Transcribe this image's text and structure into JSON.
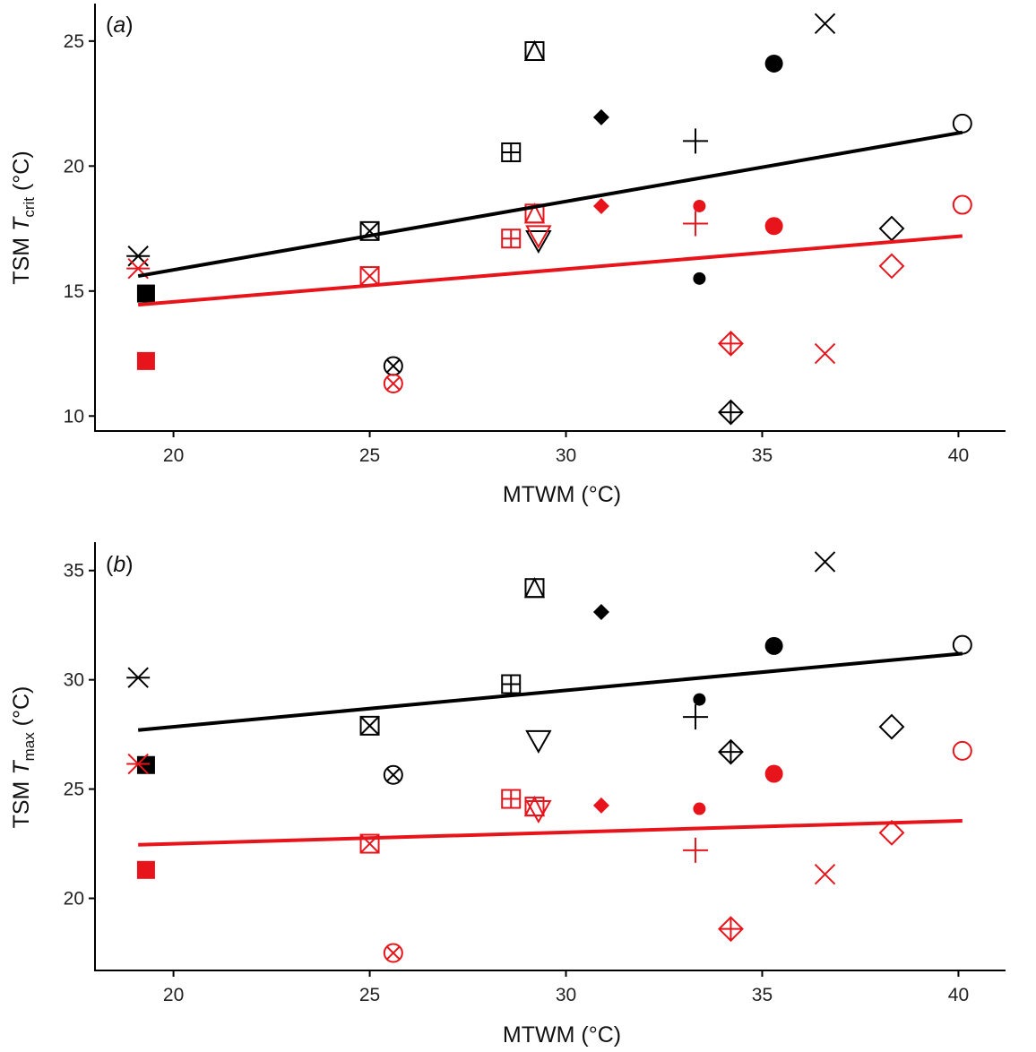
{
  "colors": {
    "black_series": "#000000",
    "red_series": "#e8141b",
    "axis": "#000000"
  },
  "chart_data": [
    {
      "type": "scatter",
      "panel": "(a)",
      "panel_letter": "a",
      "ylabel_prefix": "TSM ",
      "ylabel_var": "T",
      "ylabel_sub": "crit",
      "ylabel_suffix": " (°C)",
      "xlabel": "MTWM (°C)",
      "xlim": [
        18,
        41.2
      ],
      "ylim": [
        9.4,
        26.5
      ],
      "xticks": [
        20,
        25,
        30,
        35,
        40
      ],
      "yticks": [
        10,
        15,
        20,
        25
      ],
      "grid": false,
      "series": [
        {
          "color": "black",
          "trend": {
            "x": [
              19.1,
              40.1
            ],
            "y": [
              15.6,
              21.35
            ]
          },
          "points": [
            {
              "x": 19.1,
              "y": 16.4,
              "marker": "asterisk"
            },
            {
              "x": 19.3,
              "y": 14.9,
              "marker": "square-filled"
            },
            {
              "x": 25.0,
              "y": 17.4,
              "marker": "square-x"
            },
            {
              "x": 25.6,
              "y": 12.0,
              "marker": "circle-x"
            },
            {
              "x": 28.6,
              "y": 20.55,
              "marker": "square-plus"
            },
            {
              "x": 29.2,
              "y": 24.6,
              "marker": "square-triangle"
            },
            {
              "x": 29.3,
              "y": 17.0,
              "marker": "triangle-down"
            },
            {
              "x": 30.9,
              "y": 21.95,
              "marker": "diamond-filled"
            },
            {
              "x": 33.3,
              "y": 21.0,
              "marker": "plus"
            },
            {
              "x": 33.4,
              "y": 15.5,
              "marker": "circle-small-filled"
            },
            {
              "x": 34.2,
              "y": 10.15,
              "marker": "diamond-plus"
            },
            {
              "x": 35.3,
              "y": 24.1,
              "marker": "circle-filled"
            },
            {
              "x": 36.6,
              "y": 25.7,
              "marker": "x"
            },
            {
              "x": 38.3,
              "y": 17.5,
              "marker": "diamond"
            },
            {
              "x": 40.1,
              "y": 21.7,
              "marker": "circle"
            }
          ]
        },
        {
          "color": "red",
          "trend": {
            "x": [
              19.1,
              40.1
            ],
            "y": [
              14.45,
              17.2
            ]
          },
          "points": [
            {
              "x": 19.1,
              "y": 15.9,
              "marker": "asterisk"
            },
            {
              "x": 19.3,
              "y": 12.2,
              "marker": "square-filled"
            },
            {
              "x": 25.0,
              "y": 15.6,
              "marker": "square-x"
            },
            {
              "x": 25.6,
              "y": 11.3,
              "marker": "circle-x"
            },
            {
              "x": 28.6,
              "y": 17.1,
              "marker": "square-plus"
            },
            {
              "x": 29.2,
              "y": 18.1,
              "marker": "square-triangle"
            },
            {
              "x": 29.3,
              "y": 17.2,
              "marker": "triangle-down"
            },
            {
              "x": 30.9,
              "y": 18.4,
              "marker": "diamond-filled"
            },
            {
              "x": 33.3,
              "y": 17.7,
              "marker": "plus"
            },
            {
              "x": 33.4,
              "y": 18.4,
              "marker": "circle-small-filled"
            },
            {
              "x": 34.2,
              "y": 12.9,
              "marker": "diamond-plus"
            },
            {
              "x": 35.3,
              "y": 17.6,
              "marker": "circle-filled"
            },
            {
              "x": 36.6,
              "y": 12.5,
              "marker": "x"
            },
            {
              "x": 38.3,
              "y": 16.0,
              "marker": "diamond"
            },
            {
              "x": 40.1,
              "y": 18.45,
              "marker": "circle"
            }
          ]
        }
      ]
    },
    {
      "type": "scatter",
      "panel": "(b)",
      "panel_letter": "b",
      "ylabel_prefix": "TSM ",
      "ylabel_var": "T",
      "ylabel_sub": "max",
      "ylabel_suffix": " (°C)",
      "xlabel": "MTWM (°C)",
      "xlim": [
        18,
        41.2
      ],
      "ylim": [
        16.7,
        36.3
      ],
      "xticks": [
        20,
        25,
        30,
        35,
        40
      ],
      "yticks": [
        20,
        25,
        30,
        35
      ],
      "grid": false,
      "series": [
        {
          "color": "black",
          "trend": {
            "x": [
              19.1,
              40.1
            ],
            "y": [
              27.7,
              31.2
            ]
          },
          "points": [
            {
              "x": 19.1,
              "y": 30.1,
              "marker": "asterisk"
            },
            {
              "x": 19.3,
              "y": 26.1,
              "marker": "square-filled"
            },
            {
              "x": 25.0,
              "y": 27.9,
              "marker": "square-x"
            },
            {
              "x": 25.6,
              "y": 25.65,
              "marker": "circle-x"
            },
            {
              "x": 28.6,
              "y": 29.8,
              "marker": "square-plus"
            },
            {
              "x": 29.2,
              "y": 34.2,
              "marker": "square-triangle"
            },
            {
              "x": 29.3,
              "y": 27.2,
              "marker": "triangle-down"
            },
            {
              "x": 30.9,
              "y": 33.1,
              "marker": "diamond-filled"
            },
            {
              "x": 33.3,
              "y": 28.3,
              "marker": "plus"
            },
            {
              "x": 33.4,
              "y": 29.1,
              "marker": "circle-small-filled"
            },
            {
              "x": 34.2,
              "y": 26.7,
              "marker": "diamond-plus"
            },
            {
              "x": 35.3,
              "y": 31.55,
              "marker": "circle-filled"
            },
            {
              "x": 36.6,
              "y": 35.4,
              "marker": "x"
            },
            {
              "x": 38.3,
              "y": 27.85,
              "marker": "diamond"
            },
            {
              "x": 40.1,
              "y": 31.6,
              "marker": "circle"
            }
          ]
        },
        {
          "color": "red",
          "trend": {
            "x": [
              19.1,
              40.1
            ],
            "y": [
              22.45,
              23.55
            ]
          },
          "points": [
            {
              "x": 19.1,
              "y": 26.15,
              "marker": "asterisk"
            },
            {
              "x": 19.3,
              "y": 21.3,
              "marker": "square-filled"
            },
            {
              "x": 25.0,
              "y": 22.5,
              "marker": "square-x"
            },
            {
              "x": 25.6,
              "y": 17.5,
              "marker": "circle-x"
            },
            {
              "x": 28.6,
              "y": 24.55,
              "marker": "square-plus"
            },
            {
              "x": 29.2,
              "y": 24.2,
              "marker": "square-triangle"
            },
            {
              "x": 29.3,
              "y": 24.0,
              "marker": "triangle-down"
            },
            {
              "x": 30.9,
              "y": 24.25,
              "marker": "diamond-filled"
            },
            {
              "x": 33.3,
              "y": 22.2,
              "marker": "plus"
            },
            {
              "x": 33.4,
              "y": 24.1,
              "marker": "circle-small-filled"
            },
            {
              "x": 34.2,
              "y": 18.6,
              "marker": "diamond-plus"
            },
            {
              "x": 35.3,
              "y": 25.7,
              "marker": "circle-filled"
            },
            {
              "x": 36.6,
              "y": 21.1,
              "marker": "x"
            },
            {
              "x": 38.3,
              "y": 23.0,
              "marker": "diamond"
            },
            {
              "x": 40.1,
              "y": 26.75,
              "marker": "circle"
            }
          ]
        }
      ]
    }
  ]
}
